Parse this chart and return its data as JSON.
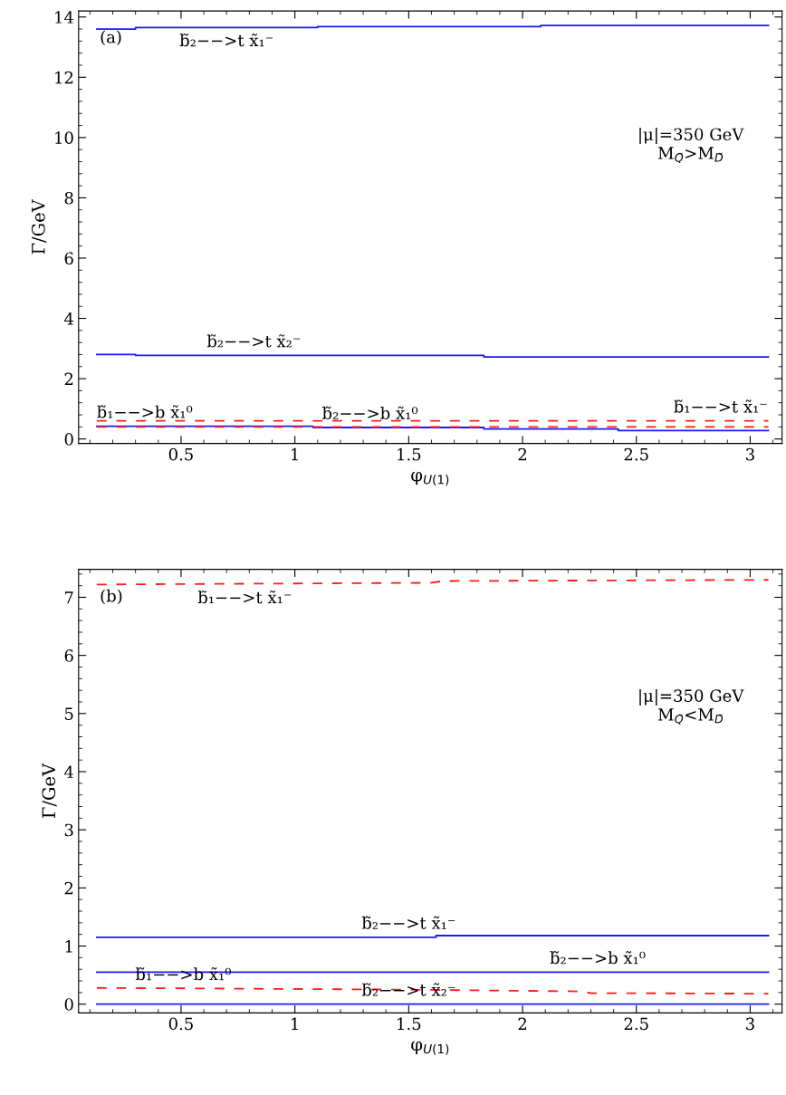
{
  "chart_data": [
    {
      "type": "line",
      "xlabel": "φ$_{U(1)}$",
      "ylabel": "Γ/GeV",
      "xlim": [
        0.05,
        3.14
      ],
      "ylim": [
        -0.15,
        14.2
      ],
      "xticks": [
        0.5,
        1,
        1.5,
        2,
        2.5,
        3
      ],
      "yticks": [
        0,
        2,
        4,
        6,
        8,
        10,
        12,
        14
      ],
      "series": [
        {
          "color": "#1a1aff",
          "line_style": "solid",
          "x": [
            0.13,
            0.3,
            0.3,
            1.1,
            1.1,
            2.08,
            2.08,
            3.08
          ],
          "values": [
            13.6,
            13.6,
            13.65,
            13.65,
            13.68,
            13.68,
            13.72,
            13.72
          ]
        },
        {
          "color": "#1a1aff",
          "line_style": "solid",
          "x": [
            0.13,
            0.3,
            0.3,
            1.83,
            1.83,
            3.08
          ],
          "values": [
            2.8,
            2.8,
            2.77,
            2.77,
            2.72,
            2.72
          ]
        },
        {
          "color": "#1a1aff",
          "line_style": "solid",
          "x": [
            0.13,
            1.08,
            1.08,
            1.83,
            1.83,
            2.42,
            2.42,
            3.08
          ],
          "values": [
            0.42,
            0.42,
            0.38,
            0.38,
            0.33,
            0.33,
            0.28,
            0.28
          ]
        },
        {
          "color": "#ff1a1a",
          "line_style": "dashed",
          "x": [
            0.13,
            3.08
          ],
          "values": [
            0.6,
            0.6
          ]
        },
        {
          "color": "#ff1a1a",
          "line_style": "dashed",
          "x": [
            0.13,
            3.08
          ],
          "values": [
            0.4,
            0.4
          ]
        }
      ],
      "annotations": [
        "(a)",
        "|μ|=350 GeV\nM$_{Q̃}$>M$_{D̃}$",
        {
          "text": "b̃₂−−>t x̃₁⁻",
          "x": 0.7,
          "y": 13.65
        },
        {
          "text": "b̃₂−−>t x̃₂⁻",
          "x": 0.82,
          "y": 2.77
        },
        {
          "text": "b̃₁−−>b x̃₁⁰",
          "x": 0.34,
          "y": 0.42
        },
        {
          "text": "b̃₂−−>b x̃₁⁰",
          "x": 1.33,
          "y": 0.38
        },
        {
          "text": "b̃₁−−>t x̃₁⁻",
          "x": 2.87,
          "y": 0.6
        }
      ]
    },
    {
      "type": "line",
      "xlabel": "φ$_{U(1)}$",
      "ylabel": "Γ/GeV",
      "xlim": [
        0.05,
        3.14
      ],
      "ylim": [
        -0.15,
        7.48
      ],
      "xticks": [
        0.5,
        1,
        1.5,
        2,
        2.5,
        3
      ],
      "yticks": [
        0,
        1,
        2,
        3,
        4,
        5,
        6,
        7
      ],
      "series": [
        {
          "color": "#ff1a1a",
          "line_style": "dashed",
          "x": [
            0.13,
            1.6,
            1.65,
            3.08
          ],
          "values": [
            7.22,
            7.25,
            7.28,
            7.3
          ]
        },
        {
          "color": "#1a1aff",
          "line_style": "solid",
          "x": [
            0.13,
            1.62,
            1.62,
            3.08
          ],
          "values": [
            1.15,
            1.15,
            1.18,
            1.18
          ]
        },
        {
          "color": "#1a1aff",
          "line_style": "solid",
          "x": [
            0.13,
            3.08
          ],
          "values": [
            0.55,
            0.55
          ]
        },
        {
          "color": "#ff1a1a",
          "line_style": "dashed",
          "x": [
            0.13,
            1.5,
            2.25,
            2.3,
            3.08
          ],
          "values": [
            0.28,
            0.25,
            0.22,
            0.19,
            0.18
          ]
        },
        {
          "color": "#1a1aff",
          "line_style": "solid",
          "x": [
            0.13,
            3.08
          ],
          "values": [
            0.0,
            0.0
          ]
        }
      ],
      "annotations": [
        "(b)",
        "|μ|=350 GeV\nM$_{Q̃}$<M$_{D̃}$",
        {
          "text": "b̃₁−−>t x̃₁⁻",
          "x": 0.78,
          "y": 7.22
        },
        {
          "text": "b̃₂−−>t x̃₁⁻",
          "x": 1.5,
          "y": 1.15
        },
        {
          "text": "b̃₂−−>b x̃₁⁰",
          "x": 2.33,
          "y": 0.55
        },
        {
          "text": "b̃₁−−>b x̃₁⁰",
          "x": 0.51,
          "y": 0.27
        },
        {
          "text": "b̃₂−−>t x̃₂⁻",
          "x": 1.5,
          "y": 0.0
        }
      ]
    }
  ]
}
